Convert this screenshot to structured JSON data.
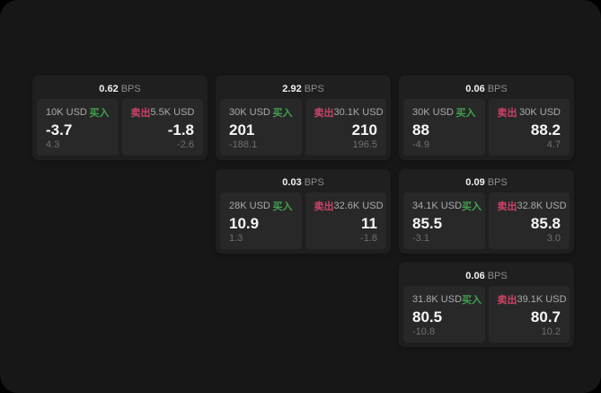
{
  "labels": {
    "buy": "买入",
    "sell": "卖出",
    "bps": "BPS"
  },
  "colors": {
    "buy_green": "#3fa24f",
    "sell_red": "#cd4367",
    "page_background": "#171717",
    "card_background": "#1f1f1f",
    "panel_background": "#282828"
  },
  "cards": [
    {
      "bps": "0.62",
      "buy": {
        "size": "10K USD",
        "price": "-3.7",
        "delta": "4.3"
      },
      "sell": {
        "size": "5.5K USD",
        "price": "-1.8",
        "delta": "-2.6"
      }
    },
    {
      "bps": "2.92",
      "buy": {
        "size": "30K USD",
        "price": "201",
        "delta": "-188.1"
      },
      "sell": {
        "size": "30.1K USD",
        "price": "210",
        "delta": "196.5"
      }
    },
    {
      "bps": "0.06",
      "buy": {
        "size": "30K USD",
        "price": "88",
        "delta": "-4.9"
      },
      "sell": {
        "size": "30K USD",
        "price": "88.2",
        "delta": "4.7"
      }
    },
    {
      "bps": "0.03",
      "buy": {
        "size": "28K USD",
        "price": "10.9",
        "delta": "1.3"
      },
      "sell": {
        "size": "32.6K USD",
        "price": "11",
        "delta": "-1.8"
      }
    },
    {
      "bps": "0.09",
      "buy": {
        "size": "34.1K USD",
        "price": "85.5",
        "delta": "-3.1"
      },
      "sell": {
        "size": "32.8K USD",
        "price": "85.8",
        "delta": "3.0"
      }
    },
    {
      "bps": "0.06",
      "buy": {
        "size": "31.8K USD",
        "price": "80.5",
        "delta": "-10.8"
      },
      "sell": {
        "size": "39.1K USD",
        "price": "80.7",
        "delta": "10.2"
      }
    }
  ]
}
